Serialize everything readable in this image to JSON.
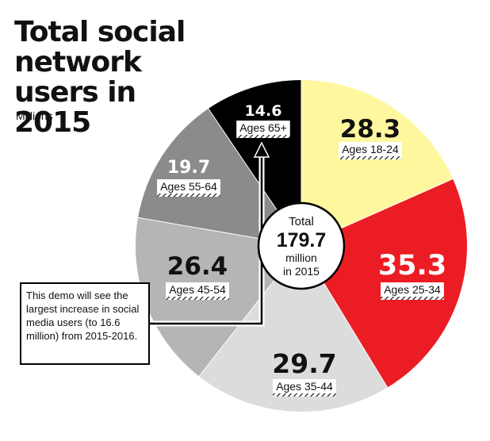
{
  "title": "Total social network users in 2015",
  "subtitle": "Millions",
  "center": {
    "line1": "Total",
    "value": "179.7",
    "line3": "million",
    "line4": "in 2015"
  },
  "annotation": "This demo will see the largest increase in social media users (to 16.6 million) from 2015-2016.",
  "chart_data": {
    "type": "pie",
    "title": "Total social network users in 2015",
    "subtitle": "Millions",
    "total": 179.7,
    "unit": "million",
    "slices": [
      {
        "label": "Ages 18-24",
        "value": 28.3,
        "color": "#fff79d",
        "value_color": "#111111"
      },
      {
        "label": "Ages 25-34",
        "value": 35.3,
        "color": "#ec1c24",
        "value_color": "#ffffff"
      },
      {
        "label": "Ages 35-44",
        "value": 29.7,
        "color": "#dcdcdd",
        "value_color": "#111111"
      },
      {
        "label": "Ages 45-54",
        "value": 26.4,
        "color": "#b5b5b6",
        "value_color": "#111111"
      },
      {
        "label": "Ages 55-64",
        "value": 19.7,
        "color": "#8b8b8c",
        "value_color": "#ffffff"
      },
      {
        "label": "Ages 65+",
        "value": 14.6,
        "color": "#000000",
        "value_color": "#ffffff"
      }
    ]
  }
}
